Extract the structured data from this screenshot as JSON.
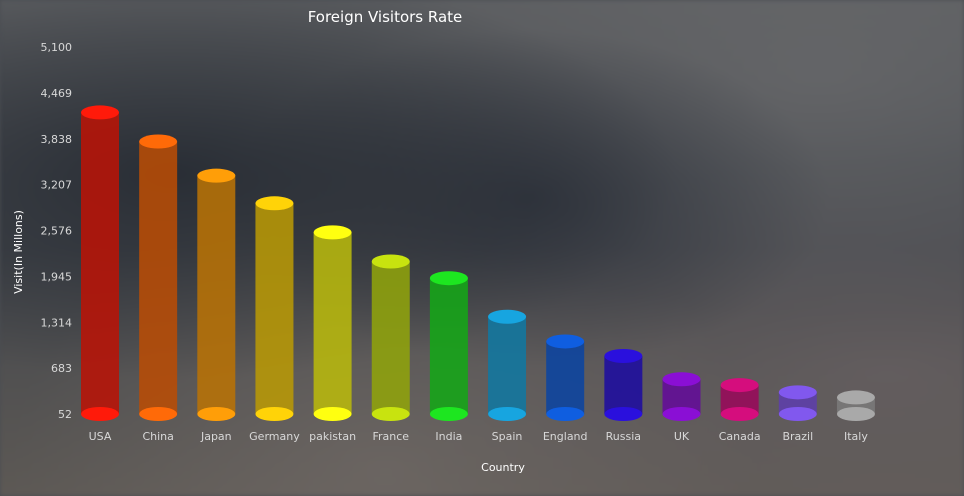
{
  "chart_data": {
    "type": "bar",
    "title": "Foreign Visitors Rate",
    "xlabel": "Country",
    "ylabel": "Visit(In Millons)",
    "ylim": [
      52,
      5100
    ],
    "yticks": [
      "52",
      "683",
      "1,314",
      "1,945",
      "2,576",
      "3,207",
      "3,838",
      "4,469",
      "5,100"
    ],
    "grid": false,
    "style": "3d-cylinder",
    "categories": [
      "USA",
      "China",
      "Japan",
      "Germany",
      "pakistan",
      "France",
      "India",
      "Spain",
      "England",
      "Russia",
      "UK",
      "Canada",
      "Brazil",
      "Italy"
    ],
    "values": [
      4200,
      3800,
      3330,
      2950,
      2550,
      2150,
      1920,
      1390,
      1050,
      850,
      530,
      450,
      350,
      280
    ],
    "colors": [
      "#ff1a0a",
      "#ff6a08",
      "#ff9e08",
      "#ffd308",
      "#ffff10",
      "#c8e30f",
      "#1de620",
      "#17a5e0",
      "#0f5ee0",
      "#2a10dd",
      "#8a0fd5",
      "#d50d7d",
      "#8158ee",
      "#a9a9a9"
    ]
  }
}
